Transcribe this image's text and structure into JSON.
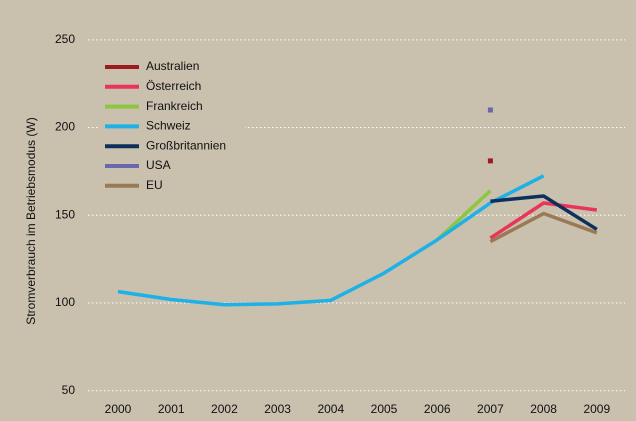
{
  "chart_data": {
    "type": "line",
    "y_label": "Stromverbrauch im Betriebsmodus (W)",
    "categories": [
      "2000",
      "2001",
      "2002",
      "2003",
      "2004",
      "2005",
      "2006",
      "2007",
      "2008",
      "2009"
    ],
    "series": [
      {
        "name": "Australien",
        "color": "#9b1b20",
        "values": [
          null,
          null,
          null,
          null,
          null,
          null,
          null,
          181,
          null,
          null
        ]
      },
      {
        "name": "Österreich",
        "color": "#e8365b",
        "values": [
          null,
          null,
          null,
          null,
          null,
          null,
          null,
          137,
          157,
          153
        ]
      },
      {
        "name": "Frankreich",
        "color": "#8dc63f",
        "values": [
          null,
          null,
          null,
          null,
          null,
          null,
          136,
          164,
          null,
          null
        ]
      },
      {
        "name": "Schweiz",
        "color": "#1eb1e6",
        "values": [
          106.5,
          102,
          99,
          99.5,
          101.5,
          117,
          136,
          157,
          172.5,
          null
        ]
      },
      {
        "name": "Großbritannien",
        "color": "#0e2f5c",
        "values": [
          null,
          null,
          null,
          null,
          null,
          null,
          null,
          158,
          161,
          142
        ]
      },
      {
        "name": "USA",
        "color": "#6a68ad",
        "values": [
          null,
          null,
          null,
          null,
          null,
          null,
          null,
          210,
          null,
          null
        ]
      },
      {
        "name": "EU",
        "color": "#9a7a55",
        "values": [
          null,
          null,
          null,
          null,
          null,
          null,
          null,
          135,
          151,
          140
        ]
      }
    ],
    "ylim": [
      43,
      267
    ],
    "yticks": [
      50,
      100,
      150,
      200,
      250
    ],
    "grid": true,
    "legend": "upper left"
  }
}
